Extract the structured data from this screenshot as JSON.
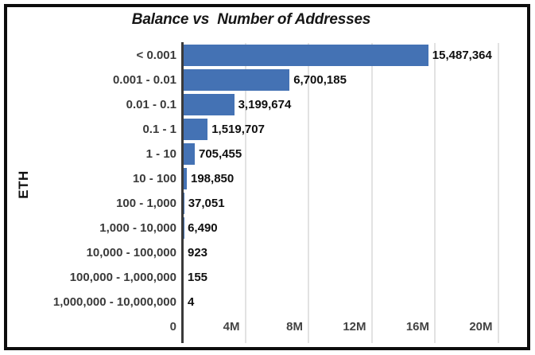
{
  "title": "Balance vs  Number of Addresses",
  "chart_data": {
    "type": "bar",
    "orientation": "horizontal",
    "title": "Balance vs  Number of Addresses",
    "xlabel": "",
    "ylabel": "ETH",
    "categories": [
      "< 0.001",
      "0.001 - 0.01",
      "0.01 - 0.1",
      "0.1 - 1",
      "1 - 10",
      "10 - 100",
      "100 - 1,000",
      "1,000 - 10,000",
      "10,000 - 100,000",
      "100,000 - 1,000,000",
      "1,000,000 - 10,000,000"
    ],
    "values": [
      15487364,
      6700185,
      3199674,
      1519707,
      705455,
      198850,
      37051,
      6490,
      923,
      155,
      4
    ],
    "value_labels": [
      "15,487,364",
      "6,700,185",
      "3,199,674",
      "1,519,707",
      "705,455",
      "198,850",
      "37,051",
      "6,490",
      "923",
      "155",
      "4"
    ],
    "x_ticks": [
      "0",
      "4M",
      "8M",
      "12M",
      "16M",
      "20M"
    ],
    "xlim": [
      0,
      20000000
    ],
    "grid": true,
    "legend": "none",
    "bar_color": "#4472b4",
    "gridline_color": "#e2e2e2",
    "axis_line_color": "#3a3a3a",
    "category_label_color": "#3a3a3a",
    "value_label_color": "#0f0f0f",
    "frame_border_color": "#0d0d0d"
  }
}
